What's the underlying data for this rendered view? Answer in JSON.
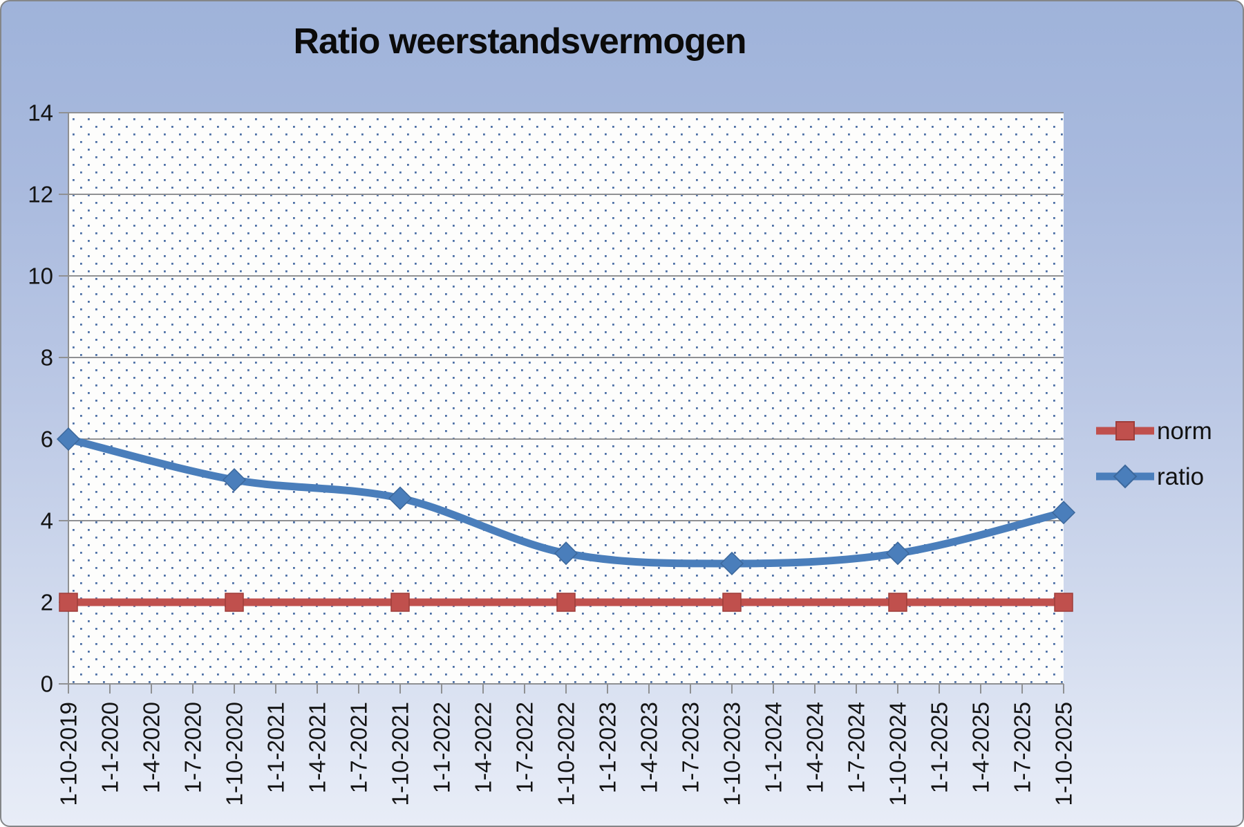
{
  "chart_data": {
    "type": "line",
    "title": "Ratio weerstandsvermogen",
    "categories": [
      "1-10-2019",
      "1-1-2020",
      "1-4-2020",
      "1-7-2020",
      "1-10-2020",
      "1-1-2021",
      "1-4-2021",
      "1-7-2021",
      "1-10-2021",
      "1-1-2022",
      "1-4-2022",
      "1-7-2022",
      "1-10-2022",
      "1-1-2023",
      "1-4-2023",
      "1-7-2023",
      "1-10-2023",
      "1-1-2024",
      "1-4-2024",
      "1-7-2024",
      "1-10-2024",
      "1-1-2025",
      "1-4-2025",
      "1-7-2025",
      "1-10-2025"
    ],
    "series": [
      {
        "name": "norm",
        "color": "#C0504D",
        "marker": "square",
        "smoothed": false,
        "points": [
          {
            "category": "1-10-2019",
            "value": 2
          },
          {
            "category": "1-10-2020",
            "value": 2
          },
          {
            "category": "1-10-2021",
            "value": 2
          },
          {
            "category": "1-10-2022",
            "value": 2
          },
          {
            "category": "1-10-2023",
            "value": 2
          },
          {
            "category": "1-10-2024",
            "value": 2
          },
          {
            "category": "1-10-2025",
            "value": 2
          }
        ]
      },
      {
        "name": "ratio",
        "color": "#4A7EBB",
        "marker": "diamond",
        "smoothed": true,
        "points": [
          {
            "category": "1-10-2019",
            "value": 6.0
          },
          {
            "category": "1-10-2020",
            "value": 5.0
          },
          {
            "category": "1-10-2021",
            "value": 4.55
          },
          {
            "category": "1-10-2022",
            "value": 3.2
          },
          {
            "category": "1-10-2023",
            "value": 2.95
          },
          {
            "category": "1-10-2024",
            "value": 3.2
          },
          {
            "category": "1-10-2025",
            "value": 4.2
          }
        ]
      }
    ],
    "ylim": [
      0,
      14
    ],
    "yticks": [
      "0",
      "2",
      "4",
      "6",
      "8",
      "10",
      "12",
      "14"
    ],
    "grid": true,
    "legend_position": "right",
    "plot_fill_color": "#fdfdfc",
    "plot_dot_color": "#4c6fa5",
    "gridline_color": "#8f9092",
    "axis_color": "#8f9092"
  }
}
